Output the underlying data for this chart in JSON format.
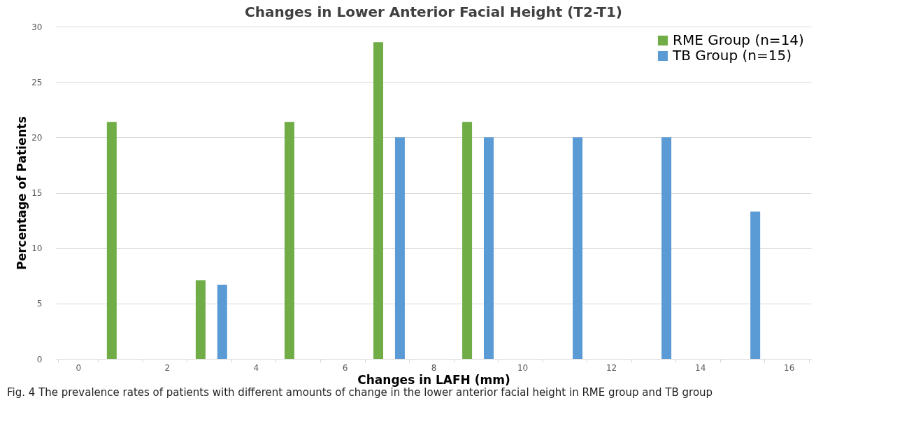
{
  "chart_data": {
    "type": "bar",
    "title": "Changes in Lower Anterior Facial Height (T2-T1)",
    "xlabel": "Changes in LAFH (mm)",
    "ylabel": "Percentage of Patients",
    "categories": [
      "0",
      null,
      "2",
      null,
      "4",
      null,
      "6",
      null,
      "8",
      null,
      "10",
      null,
      "12",
      null,
      "14",
      null,
      "16"
    ],
    "series": [
      {
        "name": "RME Group (n=14)",
        "color": "#70ad47",
        "values": [
          null,
          21.4,
          null,
          7.1,
          null,
          21.4,
          null,
          28.6,
          null,
          21.4,
          null,
          null,
          null,
          null,
          null,
          null,
          null
        ]
      },
      {
        "name": "TB Group (n=15)",
        "color": "#5b9bd5",
        "values": [
          null,
          null,
          null,
          6.7,
          null,
          null,
          null,
          20,
          null,
          20,
          null,
          20,
          null,
          20,
          null,
          13.3,
          null
        ]
      }
    ],
    "ylim": [
      0,
      30
    ],
    "yticks": [
      0,
      5,
      10,
      15,
      20,
      25,
      30
    ],
    "grid": "y",
    "legend": "top right",
    "annotations": [
      "Fig. 4  The prevalence rates of patients with different amounts of change in the lower anterior facial height in RME group and TB group"
    ]
  }
}
